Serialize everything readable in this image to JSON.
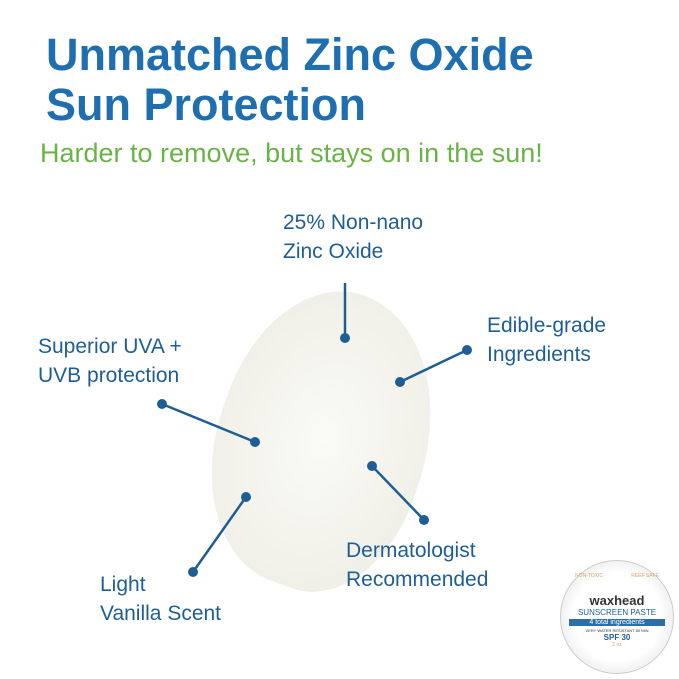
{
  "title_line1": "Unmatched Zinc Oxide",
  "title_line2": "Sun Protection",
  "subtitle": "Harder to remove, but stays on in the sun!",
  "callouts": [
    {
      "l1": "25% Non-nano",
      "l2": "Zinc Oxide"
    },
    {
      "l1": "Edible-grade",
      "l2": "Ingredients"
    },
    {
      "l1": "Superior UVA +",
      "l2": "UVB protection"
    },
    {
      "l1": "Dermatologist",
      "l2": "Recommended"
    },
    {
      "l1": "Light",
      "l2": "Vanilla Scent"
    }
  ],
  "tin": {
    "brand": "waxhead",
    "top_left": "NON-TOXIC",
    "top_right": "REEF SAFE",
    "product": "SUNSCREEN PASTE",
    "band": "4 total ingredients",
    "water": "VERY WATER RESISTANT 80 MIN",
    "spf": "SPF 30",
    "size": "2 oz"
  },
  "colors": {
    "title": "#1f6fb0",
    "subtitle": "#6ab446",
    "label": "#1f5e94"
  }
}
